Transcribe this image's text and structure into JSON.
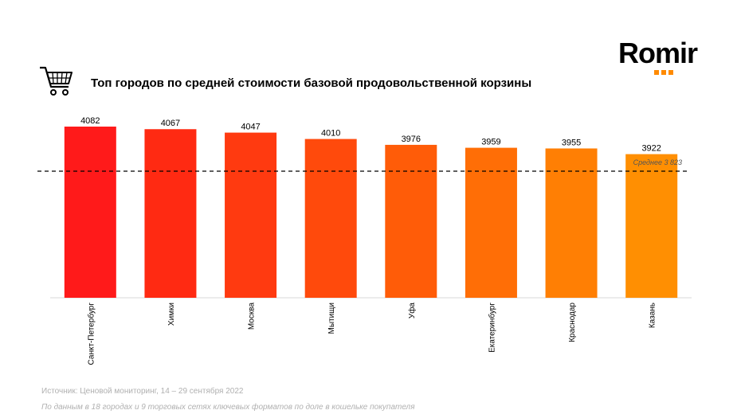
{
  "brand": {
    "name": "Romir",
    "accent_color": "#ff8a00"
  },
  "header": {
    "icon": "shopping-cart-icon",
    "title": "Топ городов по средней стоимости базовой продовольственной корзины"
  },
  "chart_data": {
    "type": "bar",
    "title": "Топ городов по средней стоимости базовой продовольственной корзины",
    "categories": [
      "Санкт-Петербург",
      "Химки",
      "Москва",
      "Мытищи",
      "Уфа",
      "Екатеринбург",
      "Краснодар",
      "Казань"
    ],
    "values": [
      4082,
      4067,
      4047,
      4010,
      3976,
      3959,
      3955,
      3922
    ],
    "value_labels": [
      "4082",
      "4067",
      "4047",
      "4010",
      "3976",
      "3959",
      "3955",
      "3922"
    ],
    "colors": [
      "#ff1a1a",
      "#ff2a12",
      "#ff3a10",
      "#ff4a0c",
      "#ff5c08",
      "#ff6e06",
      "#ff7f04",
      "#ff8f02"
    ],
    "reference_line": {
      "label": "Среднее  3 823",
      "value": 3823,
      "style": "dashed"
    },
    "grid": false
  },
  "footer": {
    "source": "Источник: Ценовой мониторинг, 14 – 29 сентября 2022",
    "note": "По данным в 18 городах и 9 торговых сетях ключевых форматов по доле в кошельке покупателя"
  }
}
